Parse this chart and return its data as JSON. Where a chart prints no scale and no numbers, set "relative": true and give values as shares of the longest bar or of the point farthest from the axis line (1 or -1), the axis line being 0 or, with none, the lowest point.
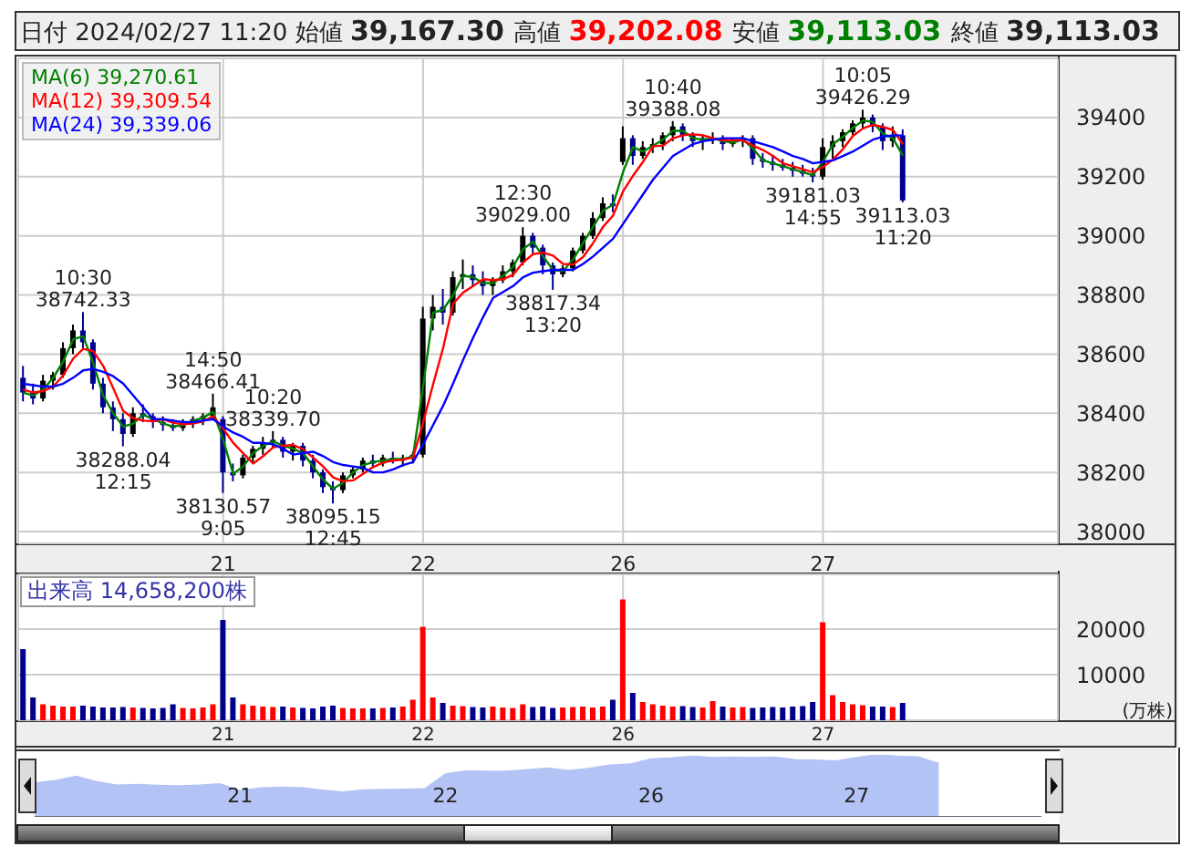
{
  "chart_data": [
    {
      "type": "candlestick",
      "title": "日付 2024/02/27 11:20 始値 39,167.30 高値 39,202.08 安値 39,113.03 終値 39,113.03",
      "categories": [
        null,
        null,
        null,
        null,
        null,
        null,
        null,
        null,
        null,
        null,
        null,
        null,
        null,
        null,
        null,
        null,
        null,
        null,
        null,
        null,
        "21",
        null,
        null,
        null,
        null,
        null,
        null,
        null,
        null,
        null,
        null,
        null,
        null,
        null,
        null,
        null,
        null,
        null,
        null,
        null,
        "22",
        null,
        null,
        null,
        null,
        null,
        null,
        null,
        null,
        null,
        null,
        null,
        null,
        null,
        null,
        null,
        null,
        null,
        null,
        null,
        "26",
        null,
        null,
        null,
        null,
        null,
        null,
        null,
        null,
        null,
        null,
        null,
        null,
        null,
        null,
        null,
        null,
        null,
        null,
        null,
        "27",
        null,
        null,
        null,
        null,
        null,
        null,
        null,
        null,
        null,
        null,
        null,
        null,
        null,
        null,
        null,
        null,
        null,
        null,
        null,
        null,
        null,
        null,
        null
      ],
      "ohlc": [
        [
          38520,
          38560,
          38440,
          38470
        ],
        [
          38470,
          38500,
          38430,
          38450
        ],
        [
          38450,
          38530,
          38440,
          38510
        ],
        [
          38510,
          38540,
          38480,
          38530
        ],
        [
          38530,
          38640,
          38520,
          38620
        ],
        [
          38620,
          38700,
          38600,
          38680
        ],
        [
          38680,
          38742.33,
          38620,
          38640
        ],
        [
          38640,
          38650,
          38480,
          38500
        ],
        [
          38500,
          38520,
          38400,
          38420
        ],
        [
          38420,
          38440,
          38340,
          38380
        ],
        [
          38380,
          38400,
          38288.04,
          38330
        ],
        [
          38330,
          38420,
          38320,
          38400
        ],
        [
          38400,
          38430,
          38370,
          38390
        ],
        [
          38390,
          38400,
          38350,
          38370
        ],
        [
          38370,
          38390,
          38340,
          38360
        ],
        [
          38360,
          38380,
          38340,
          38350
        ],
        [
          38350,
          38380,
          38340,
          38370
        ],
        [
          38370,
          38390,
          38350,
          38380
        ],
        [
          38380,
          38400,
          38360,
          38390
        ],
        [
          38390,
          38466.41,
          38380,
          38420
        ],
        [
          38380,
          38390,
          38130.57,
          38200
        ],
        [
          38200,
          38230,
          38170,
          38190
        ],
        [
          38190,
          38260,
          38180,
          38250
        ],
        [
          38250,
          38290,
          38230,
          38280
        ],
        [
          38280,
          38320,
          38260,
          38300
        ],
        [
          38300,
          38339.7,
          38280,
          38310
        ],
        [
          38310,
          38320,
          38250,
          38270
        ],
        [
          38270,
          38300,
          38240,
          38290
        ],
        [
          38290,
          38300,
          38220,
          38240
        ],
        [
          38240,
          38260,
          38180,
          38200
        ],
        [
          38200,
          38210,
          38130,
          38150
        ],
        [
          38150,
          38170,
          38095.15,
          38140
        ],
        [
          38140,
          38200,
          38130,
          38190
        ],
        [
          38190,
          38220,
          38180,
          38210
        ],
        [
          38210,
          38250,
          38200,
          38240
        ],
        [
          38240,
          38260,
          38220,
          38230
        ],
        [
          38230,
          38260,
          38220,
          38250
        ],
        [
          38250,
          38270,
          38230,
          38240
        ],
        [
          38240,
          38260,
          38220,
          38250
        ],
        [
          38250,
          38270,
          38230,
          38260
        ],
        [
          38260,
          38760,
          38250,
          38720
        ],
        [
          38720,
          38800,
          38680,
          38760
        ],
        [
          38760,
          38820,
          38700,
          38740
        ],
        [
          38740,
          38880,
          38730,
          38860
        ],
        [
          38860,
          38920,
          38820,
          38870
        ],
        [
          38870,
          38900,
          38830,
          38850
        ],
        [
          38850,
          38880,
          38800,
          38830
        ],
        [
          38830,
          38860,
          38800,
          38850
        ],
        [
          38850,
          38900,
          38840,
          38880
        ],
        [
          38880,
          38920,
          38860,
          38910
        ],
        [
          38910,
          39029.0,
          38900,
          39000
        ],
        [
          39000,
          39010,
          38940,
          38960
        ],
        [
          38960,
          38970,
          38870,
          38900
        ],
        [
          38900,
          38910,
          38817.34,
          38870
        ],
        [
          38870,
          38900,
          38860,
          38890
        ],
        [
          38890,
          38960,
          38880,
          38950
        ],
        [
          38950,
          39010,
          38940,
          39000
        ],
        [
          39000,
          39080,
          38990,
          39060
        ],
        [
          39060,
          39130,
          39050,
          39110
        ],
        [
          39110,
          39140,
          39080,
          39100
        ],
        [
          39250,
          39370,
          39240,
          39330
        ],
        [
          39330,
          39340,
          39240,
          39270
        ],
        [
          39270,
          39320,
          39260,
          39300
        ],
        [
          39300,
          39330,
          39280,
          39310
        ],
        [
          39310,
          39350,
          39290,
          39340
        ],
        [
          39340,
          39388.08,
          39320,
          39370
        ],
        [
          39370,
          39380,
          39320,
          39340
        ],
        [
          39340,
          39350,
          39300,
          39320
        ],
        [
          39320,
          39340,
          39290,
          39330
        ],
        [
          39330,
          39350,
          39310,
          39330
        ],
        [
          39330,
          39340,
          39290,
          39310
        ],
        [
          39310,
          39330,
          39300,
          39320
        ],
        [
          39320,
          39340,
          39300,
          39330
        ],
        [
          39330,
          39340,
          39240,
          39260
        ],
        [
          39260,
          39280,
          39230,
          39250
        ],
        [
          39250,
          39270,
          39220,
          39240
        ],
        [
          39240,
          39260,
          39220,
          39230
        ],
        [
          39230,
          39250,
          39200,
          39220
        ],
        [
          39220,
          39240,
          39200,
          39210
        ],
        [
          39210,
          39230,
          39181.03,
          39200
        ],
        [
          39200,
          39330,
          39190,
          39300
        ],
        [
          39300,
          39340,
          39260,
          39320
        ],
        [
          39320,
          39360,
          39300,
          39350
        ],
        [
          39350,
          39390,
          39340,
          39380
        ],
        [
          39380,
          39426.29,
          39360,
          39400
        ],
        [
          39400,
          39410,
          39350,
          39370
        ],
        [
          39370,
          39380,
          39290,
          39320
        ],
        [
          39320,
          39370,
          39300,
          39340
        ],
        [
          39340,
          39360,
          39113.03,
          39120
        ],
        null,
        null,
        null,
        null,
        null,
        null,
        null,
        null,
        null,
        null,
        null,
        null,
        null,
        null,
        null
      ],
      "colors": [
        "#00008b",
        "#00008b",
        "#000000",
        "#000000",
        "#000000",
        "#000000",
        "#00008b",
        "#00008b",
        "#00008b",
        "#00008b",
        "#00008b",
        "#000000",
        "#00008b",
        "#00008b",
        "#00008b",
        "#00008b",
        "#000000",
        "#000000",
        "#000000",
        "#000000",
        "#00008b",
        "#00008b",
        "#000000",
        "#000000",
        "#000000",
        "#000000",
        "#00008b",
        "#000000",
        "#00008b",
        "#00008b",
        "#00008b",
        "#00008b",
        "#000000",
        "#000000",
        "#000000",
        "#00008b",
        "#000000",
        "#00008b",
        "#000000",
        "#000000",
        "#000000",
        "#000000",
        "#00008b",
        "#000000",
        "#000000",
        "#00008b",
        "#00008b",
        "#000000",
        "#000000",
        "#000000",
        "#000000",
        "#00008b",
        "#00008b",
        "#00008b",
        "#000000",
        "#000000",
        "#000000",
        "#000000",
        "#000000",
        "#00008b",
        "#000000",
        "#00008b",
        "#000000",
        "#000000",
        "#000000",
        "#000000",
        "#00008b",
        "#00008b",
        "#000000",
        "#000000",
        "#00008b",
        "#000000",
        "#000000",
        "#00008b",
        "#00008b",
        "#00008b",
        "#00008b",
        "#00008b",
        "#00008b",
        "#00008b",
        "#000000",
        "#000000",
        "#000000",
        "#000000",
        "#000000",
        "#00008b",
        "#00008b",
        "#000000",
        "#00008b",
        null,
        null,
        null,
        null,
        null,
        null,
        null,
        null,
        null,
        null,
        null,
        null,
        null,
        null,
        null
      ],
      "series": [
        {
          "type": "line",
          "name": "MA(6) 39,270.61",
          "color": "#008000",
          "values": [
            38470,
            38460,
            38480,
            38520,
            38575,
            38650,
            38660,
            38570,
            38460,
            38400,
            38355,
            38365,
            38395,
            38380,
            38365,
            38355,
            38360,
            38375,
            38385,
            38405,
            38310,
            38195,
            38220,
            38265,
            38290,
            38305,
            38290,
            38280,
            38265,
            38220,
            38175,
            38145,
            38165,
            38200,
            38225,
            38235,
            38240,
            38245,
            38245,
            38255,
            38490,
            38740,
            38750,
            38800,
            38865,
            38860,
            38840,
            38840,
            38865,
            38895,
            38955,
            38980,
            38930,
            38885,
            38880,
            38920,
            38975,
            39030,
            39085,
            39105,
            39215,
            39300,
            39285,
            39305,
            39325,
            39355,
            39355,
            39330,
            39325,
            39330,
            39320,
            39315,
            39325,
            39295,
            39255,
            39245,
            39235,
            39225,
            39215,
            39205,
            39250,
            39310,
            39335,
            39365,
            39390,
            39385,
            39345,
            39330,
            39270.61,
            null,
            null,
            null,
            null,
            null,
            null,
            null,
            null,
            null,
            null,
            null,
            null,
            null,
            null,
            null
          ]
        },
        {
          "type": "line",
          "name": "MA(12) 39,309.54",
          "color": "#ff0000",
          "values": [
            38480,
            38470,
            38475,
            38490,
            38528,
            38585,
            38618,
            38610,
            38560,
            38485,
            38408,
            38383,
            38375,
            38373,
            38380,
            38368,
            38363,
            38365,
            38373,
            38390,
            38348,
            38300,
            38265,
            38230,
            38255,
            38285,
            38290,
            38293,
            38278,
            38250,
            38220,
            38183,
            38170,
            38173,
            38195,
            38218,
            38233,
            38240,
            38243,
            38250,
            38368,
            38498,
            38620,
            38770,
            38808,
            38830,
            38853,
            38850,
            38853,
            38868,
            38910,
            38938,
            38943,
            38933,
            38905,
            38903,
            38928,
            38975,
            39030,
            39068,
            39150,
            39203,
            39250,
            39303,
            39305,
            39330,
            39340,
            39343,
            39340,
            39330,
            39323,
            39323,
            39323,
            39305,
            39290,
            39270,
            39245,
            39235,
            39225,
            39215,
            39233,
            39258,
            39293,
            39338,
            39363,
            39375,
            39368,
            39358,
            39309.54,
            null,
            null,
            null,
            null,
            null,
            null,
            null,
            null,
            null,
            null,
            null,
            null,
            null,
            null,
            null
          ]
        },
        {
          "type": "line",
          "name": "MA(24) 39,339.06",
          "color": "#0000ff",
          "values": [
            38500,
            38495,
            38490,
            38490,
            38500,
            38520,
            38545,
            38550,
            38540,
            38525,
            38500,
            38460,
            38420,
            38380,
            38380,
            38375,
            38370,
            38370,
            38375,
            38380,
            38355,
            38335,
            38320,
            38300,
            38300,
            38295,
            38280,
            38260,
            38265,
            38270,
            38255,
            38235,
            38225,
            38220,
            38215,
            38200,
            38200,
            38210,
            38225,
            38235,
            38295,
            38360,
            38425,
            38500,
            38580,
            38655,
            38725,
            38790,
            38810,
            38830,
            38860,
            38875,
            38880,
            38885,
            38885,
            38885,
            38905,
            38930,
            38960,
            38990,
            39040,
            39090,
            39140,
            39190,
            39230,
            39270,
            39290,
            39310,
            39320,
            39325,
            39330,
            39330,
            39330,
            39320,
            39310,
            39300,
            39285,
            39270,
            39260,
            39245,
            39250,
            39255,
            39270,
            39285,
            39305,
            39325,
            39335,
            39340,
            39339.06,
            null,
            null,
            null,
            null,
            null,
            null,
            null,
            null,
            null,
            null,
            null,
            null,
            null,
            null,
            null
          ]
        }
      ],
      "ylim": [
        37960,
        39600
      ],
      "yticks": [
        38000,
        38200,
        38400,
        38600,
        38800,
        39000,
        39200,
        39400
      ],
      "grid": true,
      "legend": "top left",
      "annotations": [
        {
          "text": "10:30\n38742.33",
          "y": 38742.33
        },
        {
          "text": "38288.04\n12:15",
          "y": 38288.04
        },
        {
          "text": "14:50\n38466.41",
          "y": 38466.41
        },
        {
          "text": "38130.57\n9:05",
          "y": 38130.57
        },
        {
          "text": "10:20\n38339.70",
          "y": 38339.7
        },
        {
          "text": "38095.15\n12:45",
          "y": 38095.15
        },
        {
          "text": "12:30\n39029.00",
          "y": 39029.0
        },
        {
          "text": "38817.34\n13:20",
          "y": 38817.34
        },
        {
          "text": "10:40\n39388.08",
          "y": 39388.08
        },
        {
          "text": "39181.03\n14:55",
          "y": 39181.03
        },
        {
          "text": "10:05\n39426.29",
          "y": 39426.29
        },
        {
          "text": "39113.03\n11:20",
          "y": 39113.03
        }
      ]
    },
    {
      "type": "bar",
      "title": "出来高 14,658,200株",
      "ylabel": "(万株)",
      "categories": [
        null,
        null,
        null,
        null,
        null,
        null,
        null,
        null,
        null,
        null,
        null,
        null,
        null,
        null,
        null,
        null,
        null,
        null,
        null,
        null,
        "21",
        null,
        null,
        null,
        null,
        null,
        null,
        null,
        null,
        null,
        null,
        null,
        null,
        null,
        null,
        null,
        null,
        null,
        null,
        null,
        "22",
        null,
        null,
        null,
        null,
        null,
        null,
        null,
        null,
        null,
        null,
        null,
        null,
        null,
        null,
        null,
        null,
        null,
        null,
        null,
        "26",
        null,
        null,
        null,
        null,
        null,
        null,
        null,
        null,
        null,
        null,
        null,
        null,
        null,
        null,
        null,
        null,
        null,
        null,
        null,
        "27",
        null,
        null,
        null,
        null,
        null,
        null,
        null,
        null,
        null,
        null,
        null,
        null,
        null,
        null,
        null,
        null,
        null,
        null,
        null,
        null,
        null,
        null,
        null
      ],
      "values": [
        15600,
        5000,
        3500,
        3200,
        3000,
        3000,
        3200,
        3000,
        2800,
        2800,
        2900,
        2800,
        2700,
        2600,
        2700,
        3500,
        2700,
        2600,
        2800,
        3500,
        22000,
        5000,
        3500,
        3200,
        3000,
        2900,
        3000,
        2800,
        2700,
        2600,
        3000,
        3200,
        2700,
        2600,
        2600,
        2600,
        2700,
        2800,
        3000,
        4500,
        20500,
        5000,
        3800,
        3200,
        3100,
        2900,
        2800,
        3000,
        2800,
        2700,
        3500,
        2900,
        3000,
        2700,
        2800,
        2900,
        3000,
        2800,
        3000,
        4500,
        26500,
        6000,
        4000,
        3500,
        3200,
        3000,
        3100,
        2900,
        2800,
        4200,
        3000,
        2800,
        2900,
        2700,
        2800,
        2900,
        2800,
        3000,
        3100,
        4000,
        21500,
        5500,
        4000,
        3500,
        3300,
        3000,
        3000,
        2900,
        3800,
        null,
        null,
        null,
        null,
        null,
        null,
        null,
        null,
        null,
        null,
        null,
        null,
        null,
        null,
        null
      ],
      "colors": [
        "#00008b",
        "#00008b",
        "#ff0000",
        "#ff0000",
        "#ff0000",
        "#ff0000",
        "#00008b",
        "#00008b",
        "#00008b",
        "#00008b",
        "#00008b",
        "#ff0000",
        "#00008b",
        "#00008b",
        "#00008b",
        "#00008b",
        "#ff0000",
        "#ff0000",
        "#ff0000",
        "#ff0000",
        "#00008b",
        "#00008b",
        "#ff0000",
        "#ff0000",
        "#ff0000",
        "#ff0000",
        "#00008b",
        "#ff0000",
        "#00008b",
        "#00008b",
        "#00008b",
        "#00008b",
        "#ff0000",
        "#ff0000",
        "#ff0000",
        "#00008b",
        "#ff0000",
        "#00008b",
        "#ff0000",
        "#ff0000",
        "#ff0000",
        "#ff0000",
        "#00008b",
        "#ff0000",
        "#ff0000",
        "#00008b",
        "#00008b",
        "#ff0000",
        "#ff0000",
        "#ff0000",
        "#ff0000",
        "#00008b",
        "#00008b",
        "#00008b",
        "#ff0000",
        "#ff0000",
        "#ff0000",
        "#ff0000",
        "#ff0000",
        "#00008b",
        "#ff0000",
        "#00008b",
        "#ff0000",
        "#ff0000",
        "#ff0000",
        "#ff0000",
        "#00008b",
        "#00008b",
        "#ff0000",
        "#ff0000",
        "#00008b",
        "#ff0000",
        "#ff0000",
        "#00008b",
        "#00008b",
        "#00008b",
        "#00008b",
        "#00008b",
        "#00008b",
        "#00008b",
        "#ff0000",
        "#ff0000",
        "#ff0000",
        "#ff0000",
        "#ff0000",
        "#00008b",
        "#00008b",
        "#ff0000",
        "#00008b",
        null,
        null,
        null,
        null,
        null,
        null,
        null,
        null,
        null,
        null,
        null,
        null,
        null,
        null,
        null
      ],
      "ylim": [
        0,
        32000
      ],
      "yticks": [
        10000,
        20000
      ],
      "grid": true
    },
    {
      "type": "area",
      "relative": true,
      "color": "#b4c3f5",
      "categories": [
        null,
        null,
        null,
        null,
        null,
        null,
        null,
        null,
        null,
        null,
        "21",
        null,
        null,
        null,
        null,
        null,
        null,
        null,
        null,
        null,
        "22",
        null,
        null,
        null,
        null,
        null,
        null,
        null,
        null,
        null,
        "26",
        null,
        null,
        null,
        null,
        null,
        null,
        null,
        null,
        null,
        "27",
        null,
        null,
        null,
        null,
        null,
        null,
        null,
        null,
        null
      ],
      "values": [
        0.543,
        0.58,
        0.651,
        0.566,
        0.509,
        0.519,
        0.505,
        0.495,
        0.509,
        0.528,
        0.42,
        0.462,
        0.476,
        0.467,
        0.425,
        0.396,
        0.429,
        0.439,
        0.443,
        0.453,
        0.689,
        0.736,
        0.731,
        0.731,
        0.759,
        0.783,
        0.741,
        0.778,
        0.83,
        0.849,
        0.929,
        0.948,
        0.976,
        0.953,
        0.958,
        0.953,
        0.958,
        0.92,
        0.91,
        0.896,
        0.953,
        1,
        0.976,
        0.962,
        0.858,
        null,
        null,
        null,
        null,
        null
      ]
    }
  ]
}
